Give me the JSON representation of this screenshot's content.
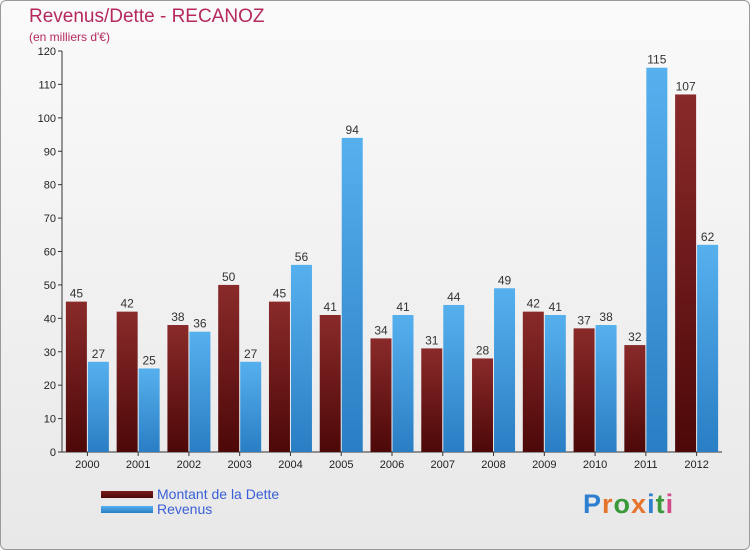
{
  "header": {
    "title": "Revenus/Dette - RECANOZ",
    "subtitle": "(en milliers d'€)"
  },
  "legend": {
    "items": [
      {
        "label": "Montant de la Dette",
        "color": "#6b1414"
      },
      {
        "label": "Revenus",
        "color": "#4a9fe0"
      }
    ]
  },
  "logo": {
    "text": "Proxiti",
    "letter_colors": [
      "#2f7fd0",
      "#e7742c",
      "#3a9a3a",
      "#e7742c",
      "#2f7fd0",
      "#3a9a3a",
      "#d44a8a"
    ]
  },
  "chart_data": {
    "type": "bar",
    "title": "Revenus/Dette - RECANOZ",
    "ylabel": "(en milliers d'€)",
    "xlabel": "",
    "ylim": [
      0,
      120
    ],
    "yticks": [
      0,
      10,
      20,
      30,
      40,
      50,
      60,
      70,
      80,
      90,
      100,
      110,
      120
    ],
    "grid": false,
    "categories": [
      "2000",
      "2001",
      "2002",
      "2003",
      "2004",
      "2005",
      "2006",
      "2007",
      "2008",
      "2009",
      "2010",
      "2011",
      "2012"
    ],
    "series": [
      {
        "name": "Montant de la Dette",
        "color": "#7a1e1e",
        "values": [
          45,
          42,
          38,
          50,
          45,
          41,
          34,
          31,
          28,
          42,
          37,
          32,
          107
        ]
      },
      {
        "name": "Revenus",
        "color": "#4aa3e6",
        "values": [
          27,
          25,
          36,
          27,
          56,
          94,
          41,
          44,
          49,
          41,
          38,
          115,
          62
        ]
      }
    ]
  }
}
